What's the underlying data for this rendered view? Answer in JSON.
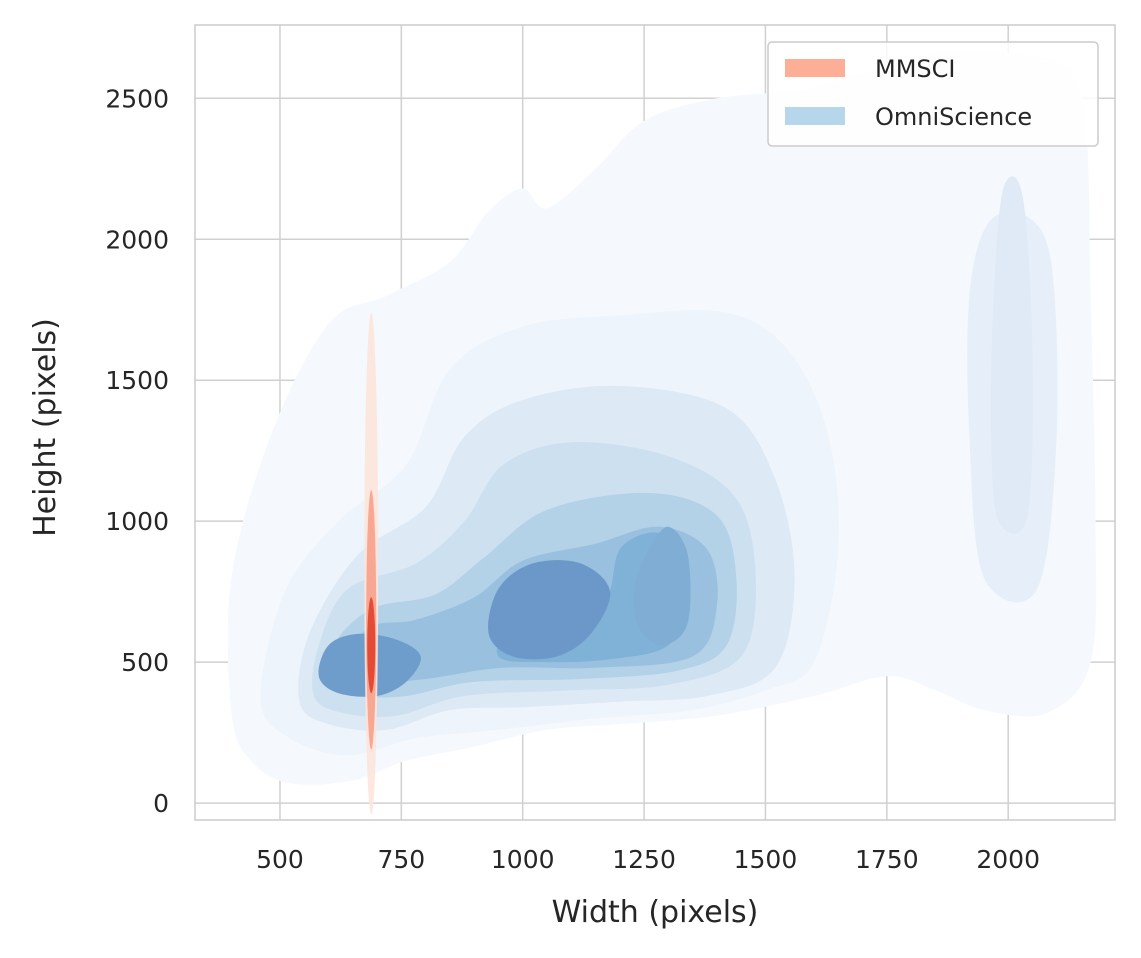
{
  "chart_data": {
    "type": "kde-contour",
    "title": "",
    "xlabel": "Width (pixels)",
    "ylabel": "Height (pixels)",
    "xlim": [
      325,
      2220
    ],
    "ylim": [
      -60,
      2760
    ],
    "xticks": [
      500,
      750,
      1000,
      1250,
      1500,
      1750,
      2000
    ],
    "yticks": [
      0,
      500,
      1000,
      1500,
      2000,
      2500
    ],
    "grid": true,
    "legend_position": "top-right",
    "series": [
      {
        "name": "MMSCI",
        "color": "#fcae97",
        "levels": [
          {
            "cx": 688,
            "cy": 850,
            "rx": 7,
            "ry": 890,
            "fill": "#fde4da",
            "opacity": 0.9
          },
          {
            "cx": 688,
            "cy": 650,
            "rx": 5,
            "ry": 460,
            "fill": "#f7a189",
            "opacity": 0.9
          },
          {
            "cx": 688,
            "cy": 560,
            "rx": 4,
            "ry": 170,
            "fill": "#e0412c",
            "opacity": 0.9
          }
        ]
      },
      {
        "name": "OmniScience",
        "color": "#b6d6ec",
        "levels": [
          {
            "points": [
              [
                400,
                320
              ],
              [
                440,
                150
              ],
              [
                520,
                70
              ],
              [
                650,
                80
              ],
              [
                760,
                150
              ],
              [
                900,
                200
              ],
              [
                1050,
                260
              ],
              [
                1200,
                280
              ],
              [
                1400,
                310
              ],
              [
                1600,
                380
              ],
              [
                1750,
                450
              ],
              [
                1850,
                400
              ],
              [
                1950,
                330
              ],
              [
                2080,
                320
              ],
              [
                2170,
                500
              ],
              [
                2180,
                1000
              ],
              [
                2170,
                1800
              ],
              [
                2160,
                2400
              ],
              [
                2120,
                2610
              ],
              [
                2000,
                2660
              ],
              [
                1850,
                2660
              ],
              [
                1700,
                2590
              ],
              [
                1580,
                2530
              ],
              [
                1400,
                2500
              ],
              [
                1250,
                2420
              ],
              [
                1150,
                2250
              ],
              [
                1050,
                2110
              ],
              [
                1000,
                2180
              ],
              [
                930,
                2100
              ],
              [
                850,
                1920
              ],
              [
                720,
                1800
              ],
              [
                600,
                1700
              ],
              [
                480,
                1300
              ],
              [
                400,
                800
              ]
            ],
            "fill": "#f5f9fe"
          },
          {
            "points": [
              [
                460,
                370
              ],
              [
                520,
                230
              ],
              [
                640,
                170
              ],
              [
                780,
                230
              ],
              [
                950,
                260
              ],
              [
                1150,
                300
              ],
              [
                1350,
                330
              ],
              [
                1500,
                400
              ],
              [
                1600,
                500
              ],
              [
                1650,
                900
              ],
              [
                1630,
                1300
              ],
              [
                1550,
                1600
              ],
              [
                1420,
                1740
              ],
              [
                1200,
                1730
              ],
              [
                1000,
                1690
              ],
              [
                850,
                1540
              ],
              [
                760,
                1200
              ],
              [
                620,
                1000
              ],
              [
                510,
                750
              ]
            ],
            "fill": "#eef4fb"
          },
          {
            "points": [
              [
                1950,
                800
              ],
              [
                2060,
                760
              ],
              [
                2100,
                1300
              ],
              [
                2090,
                1900
              ],
              [
                2040,
                2080
              ],
              [
                1960,
                2060
              ],
              [
                1920,
                1800
              ],
              [
                1920,
                1300
              ]
            ],
            "fill": "#e6eff9"
          },
          {
            "points": [
              [
                1980,
                1000
              ],
              [
                2040,
                1020
              ],
              [
                2050,
                1600
              ],
              [
                2030,
                2150
              ],
              [
                1990,
                2180
              ],
              [
                1970,
                1800
              ],
              [
                1965,
                1300
              ]
            ],
            "fill": "#dfeaf6"
          },
          {
            "points": [
              [
                540,
                360
              ],
              [
                600,
                280
              ],
              [
                720,
                260
              ],
              [
                850,
                330
              ],
              [
                1000,
                340
              ],
              [
                1200,
                360
              ],
              [
                1380,
                380
              ],
              [
                1520,
                480
              ],
              [
                1560,
                800
              ],
              [
                1520,
                1150
              ],
              [
                1420,
                1400
              ],
              [
                1200,
                1480
              ],
              [
                1000,
                1430
              ],
              [
                880,
                1300
              ],
              [
                800,
                1050
              ],
              [
                660,
                880
              ],
              [
                560,
                600
              ]
            ],
            "fill": "#dde9f5"
          },
          {
            "points": [
              [
                570,
                380
              ],
              [
                630,
                320
              ],
              [
                740,
                310
              ],
              [
                880,
                380
              ],
              [
                1100,
                400
              ],
              [
                1300,
                420
              ],
              [
                1450,
                520
              ],
              [
                1480,
                800
              ],
              [
                1440,
                1080
              ],
              [
                1300,
                1230
              ],
              [
                1100,
                1280
              ],
              [
                960,
                1200
              ],
              [
                880,
                1000
              ],
              [
                780,
                850
              ],
              [
                640,
                760
              ],
              [
                580,
                560
              ]
            ],
            "fill": "#cde0f0"
          },
          {
            "points": [
              [
                600,
                420
              ],
              [
                660,
                380
              ],
              [
                760,
                380
              ],
              [
                900,
                430
              ],
              [
                1120,
                440
              ],
              [
                1320,
                470
              ],
              [
                1420,
                560
              ],
              [
                1440,
                800
              ],
              [
                1400,
                1020
              ],
              [
                1260,
                1100
              ],
              [
                1050,
                1040
              ],
              [
                920,
                870
              ],
              [
                820,
                740
              ],
              [
                690,
                690
              ],
              [
                610,
                560
              ]
            ],
            "fill": "#b3d1e7"
          },
          {
            "points": [
              [
                630,
                460
              ],
              [
                700,
                430
              ],
              [
                800,
                440
              ],
              [
                960,
                480
              ],
              [
                1150,
                480
              ],
              [
                1350,
                520
              ],
              [
                1400,
                700
              ],
              [
                1380,
                900
              ],
              [
                1280,
                980
              ],
              [
                1150,
                920
              ],
              [
                1000,
                860
              ],
              [
                900,
                730
              ],
              [
                780,
                650
              ],
              [
                680,
                620
              ]
            ],
            "fill": "#99c1df"
          },
          {
            "points": [
              [
                950,
                520
              ],
              [
                1050,
                500
              ],
              [
                1180,
                510
              ],
              [
                1300,
                560
              ],
              [
                1340,
                720
              ],
              [
                1320,
                900
              ],
              [
                1270,
                960
              ],
              [
                1200,
                900
              ],
              [
                1170,
                720
              ],
              [
                1080,
                720
              ],
              [
                980,
                650
              ]
            ],
            "fill": "#80b1d7"
          },
          {
            "points": [
              [
                580,
                450
              ],
              [
                620,
                390
              ],
              [
                700,
                380
              ],
              [
                760,
                430
              ],
              [
                790,
                520
              ],
              [
                740,
                580
              ],
              [
                660,
                600
              ],
              [
                600,
                560
              ]
            ],
            "fill": "#6f9dcb"
          },
          {
            "points": [
              [
                930,
                600
              ],
              [
                980,
                520
              ],
              [
                1070,
                520
              ],
              [
                1140,
                600
              ],
              [
                1180,
                750
              ],
              [
                1120,
                850
              ],
              [
                1020,
                850
              ],
              [
                950,
                760
              ]
            ],
            "fill": "#6b98c8"
          },
          {
            "points": [
              [
                1240,
                620
              ],
              [
                1290,
                560
              ],
              [
                1340,
                640
              ],
              [
                1340,
                880
              ],
              [
                1300,
                980
              ],
              [
                1260,
                900
              ],
              [
                1230,
                760
              ]
            ],
            "fill": "#7fadd4"
          }
        ]
      }
    ]
  }
}
